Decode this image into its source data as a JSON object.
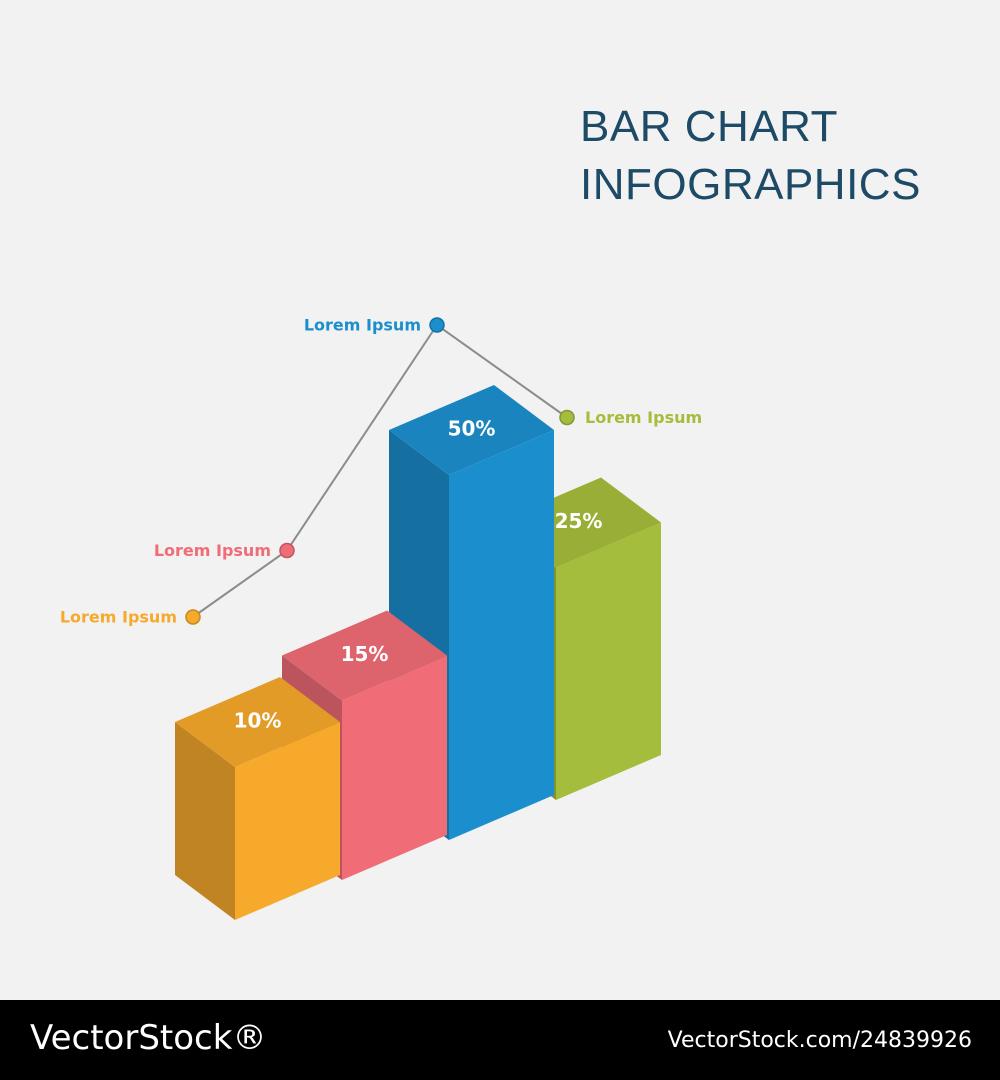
{
  "chart_data": {
    "type": "bar3d",
    "title": "BAR CHART INFOGRAPHICS",
    "categories": [
      "Lorem Ipsum",
      "Lorem Ipsum",
      "Lorem Ipsum",
      "Lorem Ipsum"
    ],
    "values": [
      10,
      15,
      50,
      25
    ],
    "value_labels": [
      "10%",
      "15%",
      "50%",
      "25%"
    ],
    "colors": [
      "#f7a92b",
      "#f06c77",
      "#1b8fce",
      "#a5bd3c"
    ]
  },
  "footer": {
    "brand": "VectorStock®",
    "id": "VectorStock.com/24839926"
  }
}
